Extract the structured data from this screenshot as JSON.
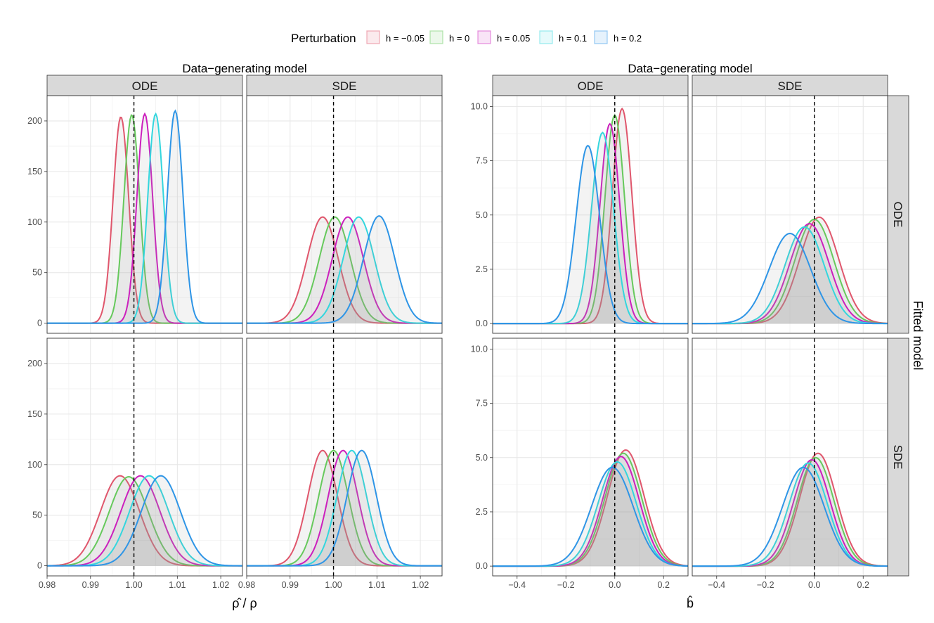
{
  "legend": {
    "title": "Perturbation",
    "items": [
      {
        "label": "h = −0.05",
        "color": "#E0566C"
      },
      {
        "label": "h = 0",
        "color": "#66C95C"
      },
      {
        "label": "h = 0.05",
        "color": "#CC1FBD"
      },
      {
        "label": "h = 0.1",
        "color": "#33D6DE"
      },
      {
        "label": "h = 0.2",
        "color": "#2E95E6"
      }
    ]
  },
  "super_titles": {
    "left": "Data−generating model",
    "right": "Data−generating model"
  },
  "strip_labels": {
    "col_ode": "ODE",
    "col_sde": "SDE",
    "row_ode": "ODE",
    "row_sde": "SDE",
    "row_title": "Fitted model"
  },
  "axis_titles": {
    "left_x": "ρ̂ / ρ",
    "right_x": "b̂"
  },
  "chart_data": [
    {
      "type": "area",
      "title": "",
      "xlabel": "ρ̂ / ρ",
      "ylabel": "",
      "xlim": [
        0.98,
        1.025
      ],
      "ylim": [
        -10,
        225
      ],
      "xticks": [
        0.98,
        0.99,
        1.0,
        1.01,
        1.02
      ],
      "yticks": [
        0,
        50,
        100,
        150,
        200
      ],
      "xtick_labels": [
        "0.98",
        "0.99",
        "1.00",
        "1.01",
        "1.02"
      ],
      "ytick_labels": [
        "0",
        "50",
        "100",
        "150",
        "200"
      ],
      "reference_line_x": 1.0,
      "column_facet": "Data−generating model",
      "row_facet": "Fitted model",
      "grid": true,
      "panels": [
        {
          "gen": "ODE",
          "fit": "ODE",
          "series": [
            {
              "name": "h = −0.05",
              "peak_x": 0.997,
              "peak_y": 204,
              "spread": 0.0018
            },
            {
              "name": "h = 0",
              "peak_x": 0.9995,
              "peak_y": 206,
              "spread": 0.0018
            },
            {
              "name": "h = 0.05",
              "peak_x": 1.0025,
              "peak_y": 207,
              "spread": 0.0018
            },
            {
              "name": "h = 0.1",
              "peak_x": 1.005,
              "peak_y": 207,
              "spread": 0.0018
            },
            {
              "name": "h = 0.2",
              "peak_x": 1.0095,
              "peak_y": 210,
              "spread": 0.0018
            }
          ]
        },
        {
          "gen": "SDE",
          "fit": "ODE",
          "series": [
            {
              "name": "h = −0.05",
              "peak_x": 0.9975,
              "peak_y": 105,
              "spread": 0.0036
            },
            {
              "name": "h = 0",
              "peak_x": 1.0003,
              "peak_y": 105,
              "spread": 0.0036
            },
            {
              "name": "h = 0.05",
              "peak_x": 1.0033,
              "peak_y": 105,
              "spread": 0.0036
            },
            {
              "name": "h = 0.1",
              "peak_x": 1.0058,
              "peak_y": 105,
              "spread": 0.0036
            },
            {
              "name": "h = 0.2",
              "peak_x": 1.0105,
              "peak_y": 106,
              "spread": 0.0036
            }
          ]
        },
        {
          "gen": "ODE",
          "fit": "SDE",
          "series": [
            {
              "name": "h = −0.05",
              "peak_x": 0.9968,
              "peak_y": 89,
              "spread": 0.0045
            },
            {
              "name": "h = 0",
              "peak_x": 0.9988,
              "peak_y": 88,
              "spread": 0.0045
            },
            {
              "name": "h = 0.05",
              "peak_x": 1.0015,
              "peak_y": 89,
              "spread": 0.0045
            },
            {
              "name": "h = 0.1",
              "peak_x": 1.0035,
              "peak_y": 89,
              "spread": 0.0045
            },
            {
              "name": "h = 0.2",
              "peak_x": 1.0062,
              "peak_y": 89,
              "spread": 0.0045
            }
          ]
        },
        {
          "gen": "SDE",
          "fit": "SDE",
          "series": [
            {
              "name": "h = −0.05",
              "peak_x": 0.9975,
              "peak_y": 114,
              "spread": 0.0034
            },
            {
              "name": "h = 0",
              "peak_x": 1.0,
              "peak_y": 114,
              "spread": 0.0034
            },
            {
              "name": "h = 0.05",
              "peak_x": 1.0022,
              "peak_y": 114,
              "spread": 0.0034
            },
            {
              "name": "h = 0.1",
              "peak_x": 1.0042,
              "peak_y": 114,
              "spread": 0.0034
            },
            {
              "name": "h = 0.2",
              "peak_x": 1.0065,
              "peak_y": 114,
              "spread": 0.0034
            }
          ]
        }
      ]
    },
    {
      "type": "area",
      "title": "",
      "xlabel": "b̂",
      "ylabel": "",
      "xlim": [
        -0.5,
        0.3
      ],
      "ylim": [
        -0.45,
        10.5
      ],
      "xticks": [
        -0.4,
        -0.2,
        0.0,
        0.2
      ],
      "yticks": [
        0,
        2.5,
        5,
        7.5,
        10
      ],
      "xtick_labels": [
        "−0.4",
        "−0.2",
        "0.0",
        "0.2"
      ],
      "ytick_labels": [
        "0.0",
        "2.5",
        "5.0",
        "7.5",
        "10.0"
      ],
      "reference_line_x": 0.0,
      "column_facet": "Data−generating model",
      "row_facet": "Fitted model",
      "grid": true,
      "panels": [
        {
          "gen": "ODE",
          "fit": "ODE",
          "series": [
            {
              "name": "h = −0.05",
              "peak_x": 0.03,
              "peak_y": 9.9,
              "spread": 0.04
            },
            {
              "name": "h = 0",
              "peak_x": 0.0,
              "peak_y": 9.6,
              "spread": 0.04
            },
            {
              "name": "h = 0.05",
              "peak_x": -0.02,
              "peak_y": 9.2,
              "spread": 0.04
            },
            {
              "name": "h = 0.1",
              "peak_x": -0.05,
              "peak_y": 8.8,
              "spread": 0.045
            },
            {
              "name": "h = 0.2",
              "peak_x": -0.11,
              "peak_y": 8.2,
              "spread": 0.048
            }
          ]
        },
        {
          "gen": "SDE",
          "fit": "ODE",
          "series": [
            {
              "name": "h = −0.05",
              "peak_x": 0.02,
              "peak_y": 4.9,
              "spread": 0.08
            },
            {
              "name": "h = 0",
              "peak_x": 0.0,
              "peak_y": 4.8,
              "spread": 0.08
            },
            {
              "name": "h = 0.05",
              "peak_x": -0.02,
              "peak_y": 4.6,
              "spread": 0.08
            },
            {
              "name": "h = 0.1",
              "peak_x": -0.04,
              "peak_y": 4.45,
              "spread": 0.08
            },
            {
              "name": "h = 0.2",
              "peak_x": -0.1,
              "peak_y": 4.15,
              "spread": 0.085
            }
          ]
        },
        {
          "gen": "ODE",
          "fit": "SDE",
          "series": [
            {
              "name": "h = −0.05",
              "peak_x": 0.045,
              "peak_y": 5.35,
              "spread": 0.075
            },
            {
              "name": "h = 0",
              "peak_x": 0.035,
              "peak_y": 5.2,
              "spread": 0.075
            },
            {
              "name": "h = 0.05",
              "peak_x": 0.025,
              "peak_y": 5.05,
              "spread": 0.075
            },
            {
              "name": "h = 0.1",
              "peak_x": 0.01,
              "peak_y": 4.8,
              "spread": 0.078
            },
            {
              "name": "h = 0.2",
              "peak_x": -0.01,
              "peak_y": 4.55,
              "spread": 0.085
            }
          ]
        },
        {
          "gen": "SDE",
          "fit": "SDE",
          "series": [
            {
              "name": "h = −0.05",
              "peak_x": 0.015,
              "peak_y": 5.2,
              "spread": 0.075
            },
            {
              "name": "h = 0",
              "peak_x": 0.005,
              "peak_y": 5.0,
              "spread": 0.075
            },
            {
              "name": "h = 0.05",
              "peak_x": -0.01,
              "peak_y": 4.9,
              "spread": 0.075
            },
            {
              "name": "h = 0.1",
              "peak_x": -0.025,
              "peak_y": 4.75,
              "spread": 0.078
            },
            {
              "name": "h = 0.2",
              "peak_x": -0.045,
              "peak_y": 4.55,
              "spread": 0.085
            }
          ]
        }
      ]
    }
  ]
}
